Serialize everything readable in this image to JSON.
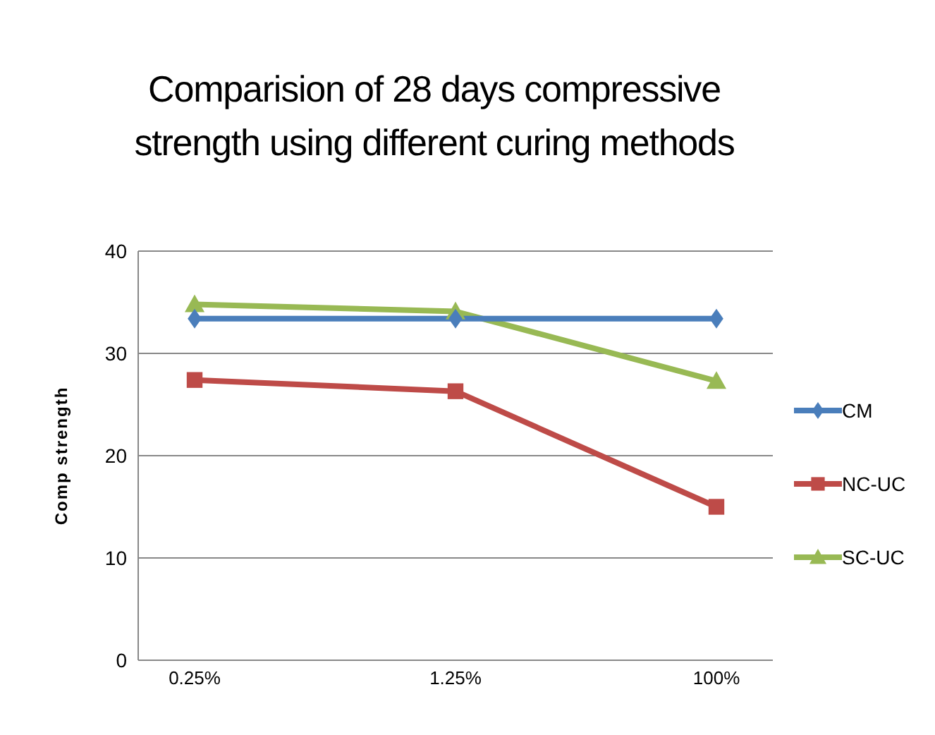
{
  "chart_data": {
    "type": "line",
    "title": "Comparision of 28 days compressive strength using different curing methods",
    "ylabel": "Comp strength",
    "categories": [
      "0.25%",
      "1.25%",
      "100%"
    ],
    "series": [
      {
        "name": "CM",
        "color": "#4a7ebb",
        "marker": "diamond",
        "values": [
          33.4,
          33.4,
          33.4
        ]
      },
      {
        "name": "NC-UC",
        "color": "#be4b48",
        "marker": "square",
        "values": [
          27.4,
          26.3,
          15
        ]
      },
      {
        "name": "SC-UC",
        "color": "#98b954",
        "marker": "triangle",
        "values": [
          34.8,
          34.1,
          27.3
        ]
      }
    ],
    "ylim": [
      0,
      40
    ],
    "yticks": [
      0,
      10,
      20,
      30,
      40
    ],
    "grid": "y",
    "legend": "right"
  }
}
